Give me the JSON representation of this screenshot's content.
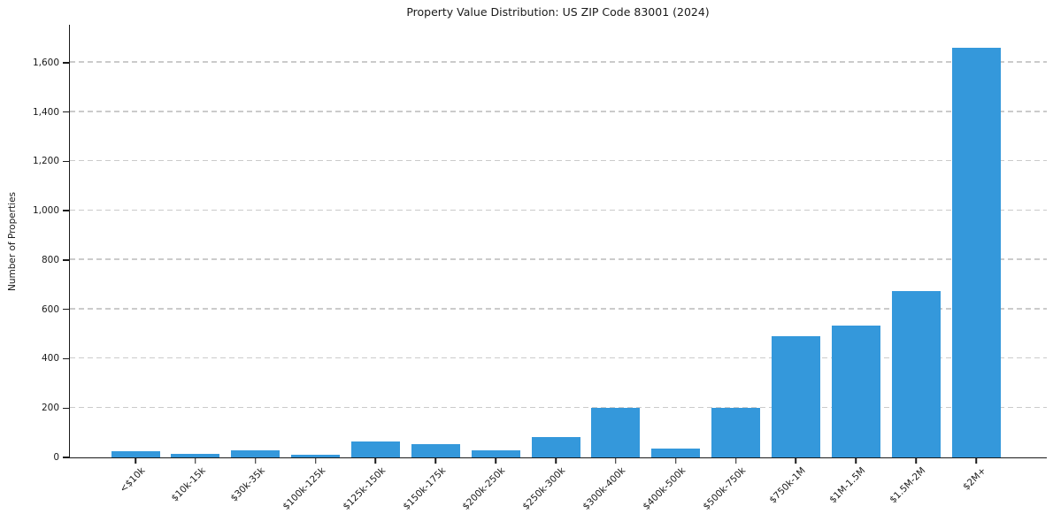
{
  "chart_data": {
    "type": "bar",
    "title": "Property Value Distribution: US ZIP Code 83001 (2024)",
    "xlabel": "",
    "ylabel": "Number of Properties",
    "categories": [
      "<$10k",
      "$10k-15k",
      "$30k-35k",
      "$100k-125k",
      "$125k-150k",
      "$150k-175k",
      "$200k-250k",
      "$250k-300k",
      "$300k-400k",
      "$400k-500k",
      "$500k-750k",
      "$750k-1M",
      "$1M-1.5M",
      "$1.5M-2M",
      "$2M+"
    ],
    "values": [
      25,
      15,
      28,
      11,
      65,
      54,
      30,
      82,
      200,
      37,
      200,
      493,
      536,
      675,
      1660
    ],
    "yticks": [
      0,
      200,
      400,
      600,
      800,
      1000,
      1200,
      1400,
      1600
    ],
    "ytick_labels": [
      "0",
      "200",
      "400",
      "600",
      "800",
      "1,000",
      "1,200",
      "1,400",
      "1,600"
    ],
    "ylim": [
      0,
      1754
    ],
    "grid": "horizontal-dashed",
    "legend": "none",
    "bar_color": "#3498db",
    "grid_color": "#cbcbcb",
    "axis_color": "#1a1a1a",
    "background_color": "#ffffff"
  }
}
